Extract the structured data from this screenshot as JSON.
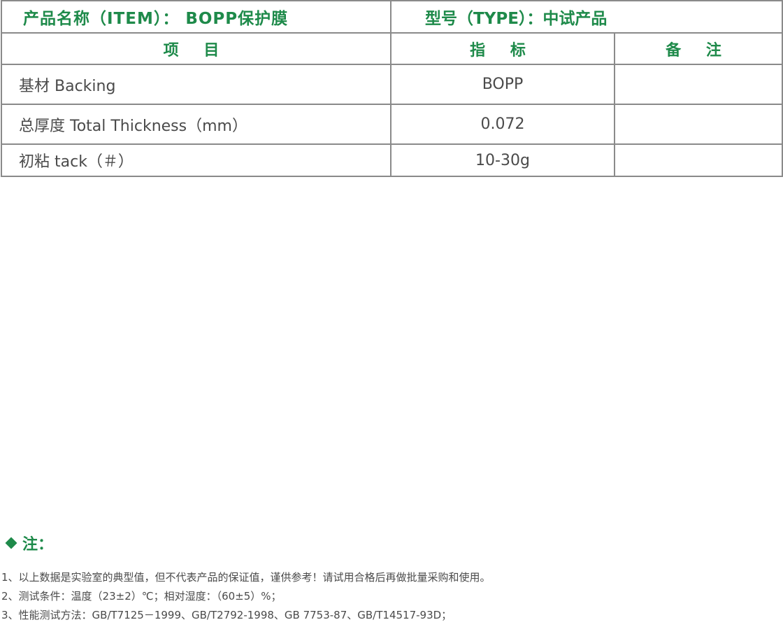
{
  "title_row": {
    "item_name": "产品名称（ITEM）： BOPP保护膜",
    "type": "型号（TYPE）：中试产品"
  },
  "headers": {
    "item": "项 目",
    "spec": "指 标",
    "remark": "备 注"
  },
  "rows": [
    {
      "item": "基材 Backing",
      "value": "BOPP",
      "remark": ""
    },
    {
      "item": "总厚度 Total Thickness（mm）",
      "value": "0.072",
      "remark": ""
    },
    {
      "item": "初粘 tack（＃）",
      "value": "10-30g",
      "remark": ""
    }
  ],
  "notes": {
    "title": "注：",
    "items": [
      "1、以上数据是实验室的典型值，但不代表产品的保证值，谨供参考！请试用合格后再做批量采购和使用。",
      "2、测试条件：温度（23±2）℃；相对湿度：（60±5）%；",
      "3、性能测试方法：GB/T7125－1999、GB/T2792-1998、GB 7753-87、GB/T14517-93D；"
    ]
  },
  "colors": {
    "accent_green": "#1e8a4a",
    "text_gray": "#4a4a4a",
    "border_gray": "#8a8a8a"
  }
}
